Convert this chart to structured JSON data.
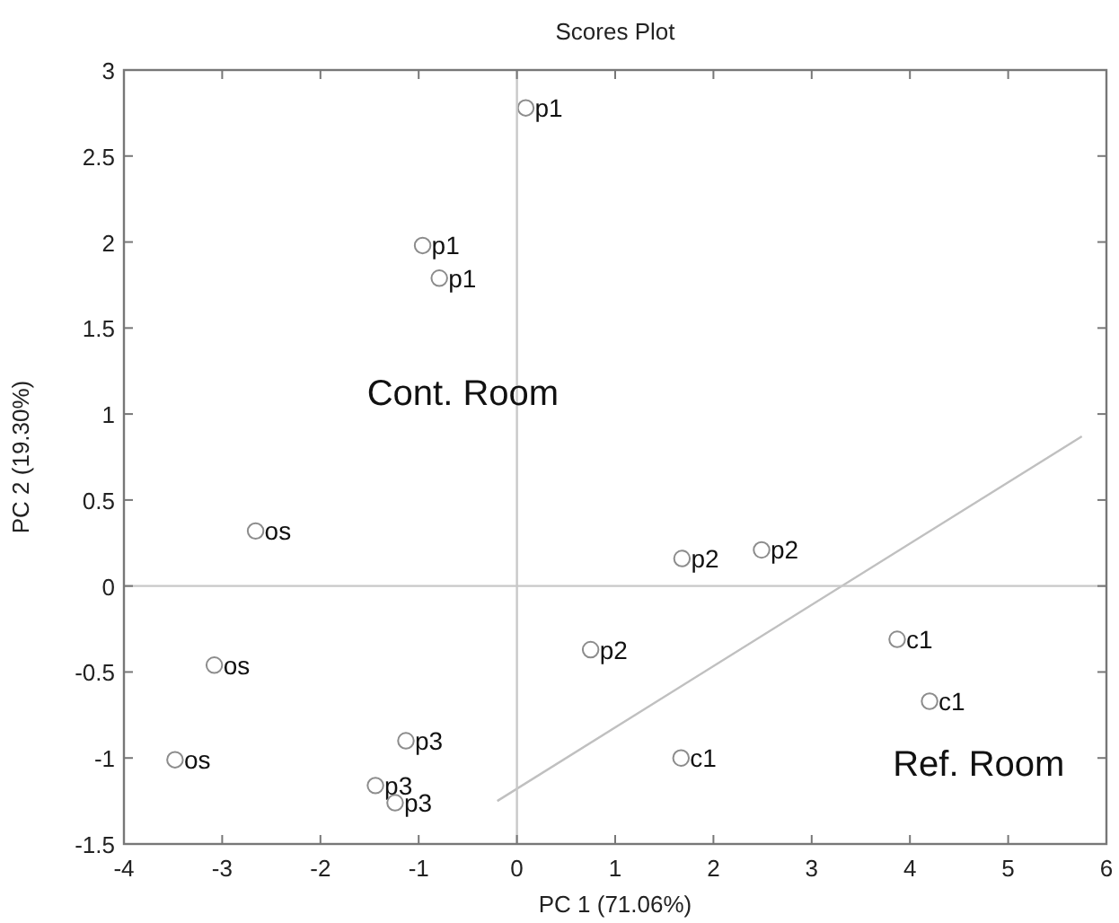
{
  "chart_data": {
    "type": "scatter",
    "title": "Scores Plot",
    "xlabel": "PC 1 (71.06%)",
    "ylabel": "PC 2 (19.30%)",
    "xlim": [
      -4,
      6
    ],
    "ylim": [
      -1.5,
      3
    ],
    "xticks": [
      -4,
      -3,
      -2,
      -1,
      0,
      1,
      2,
      3,
      4,
      5,
      6
    ],
    "yticks": [
      -1.5,
      -1,
      -0.5,
      0,
      0.5,
      1,
      1.5,
      2,
      2.5,
      3
    ],
    "grid": false,
    "legend": false,
    "marker": "circle",
    "series": [
      {
        "name": "p1",
        "color": "#8c8c8c",
        "x": [
          0.09,
          -0.96,
          -0.79
        ],
        "values": [
          2.78,
          1.98,
          1.79
        ]
      },
      {
        "name": "os",
        "color": "#8c8c8c",
        "x": [
          -2.66,
          -3.08,
          -3.48
        ],
        "values": [
          0.32,
          -0.46,
          -1.01
        ]
      },
      {
        "name": "p3",
        "color": "#8c8c8c",
        "x": [
          -1.13,
          -1.44,
          -1.24
        ],
        "values": [
          -0.9,
          -1.16,
          -1.26
        ]
      },
      {
        "name": "p2",
        "color": "#8c8c8c",
        "x": [
          1.68,
          2.49,
          0.75
        ],
        "values": [
          0.16,
          0.21,
          -0.37
        ]
      },
      {
        "name": "c1",
        "color": "#8c8c8c",
        "x": [
          3.87,
          4.2,
          1.67
        ],
        "values": [
          -0.31,
          -0.67,
          -1.0
        ]
      },
      {
        "type": "line",
        "color": "#c0c0c0",
        "marker": "none",
        "x": [
          -0.2,
          5.75
        ],
        "values": [
          -1.25,
          0.87
        ]
      },
      {
        "type": "line",
        "color": "#c8c8c8",
        "marker": "none",
        "x": [
          0,
          0
        ],
        "values": [
          -1.5,
          3
        ]
      },
      {
        "type": "line",
        "color": "#c8c8c8",
        "marker": "none",
        "x": [
          -4,
          6
        ],
        "values": [
          0,
          0
        ]
      }
    ],
    "annotations": [
      "Cont. Room",
      "Ref. Room"
    ]
  }
}
